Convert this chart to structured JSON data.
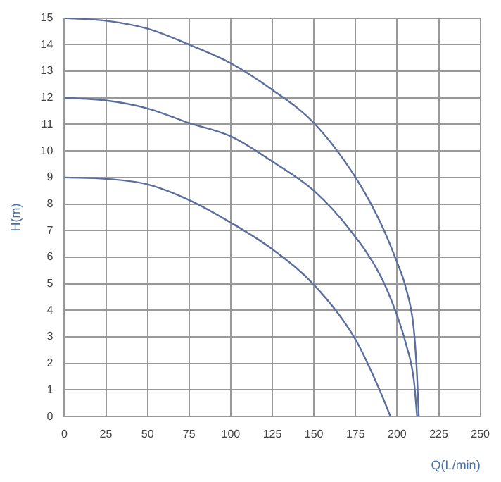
{
  "chart_data": {
    "type": "line",
    "xlabel": "Q(L/min)",
    "ylabel": "H(m)",
    "xlim": [
      0,
      250
    ],
    "ylim": [
      0,
      15
    ],
    "xticks": [
      0,
      25,
      50,
      75,
      100,
      125,
      150,
      175,
      200,
      225,
      250
    ],
    "yticks": [
      0,
      1,
      2,
      3,
      4,
      5,
      6,
      7,
      8,
      9,
      10,
      11,
      12,
      13,
      14,
      15
    ],
    "grid": true,
    "marker": "none",
    "line_style": "solid",
    "series": [
      {
        "color": "#5b6f9f",
        "x": [
          0,
          25,
          50,
          75,
          100,
          125,
          150,
          175,
          190,
          200,
          205,
          210,
          212,
          213
        ],
        "values": [
          15,
          14.9,
          14.6,
          14,
          13.3,
          12.3,
          11.05,
          9,
          7.3,
          5.8,
          4.9,
          3.3,
          1.5,
          0
        ]
      },
      {
        "color": "#5b6f9f",
        "x": [
          0,
          25,
          50,
          75,
          100,
          125,
          150,
          172,
          190,
          200,
          205,
          210,
          212
        ],
        "values": [
          12,
          11.9,
          11.6,
          11.05,
          10.55,
          9.6,
          8.5,
          7,
          5.3,
          3.8,
          2.8,
          1.4,
          0
        ]
      },
      {
        "color": "#5b6f9f",
        "x": [
          0,
          25,
          50,
          75,
          100,
          125,
          150,
          175,
          189,
          196
        ],
        "values": [
          9,
          8.95,
          8.74,
          8.15,
          7.3,
          6.3,
          4.96,
          2.9,
          1.07,
          0
        ]
      }
    ]
  }
}
